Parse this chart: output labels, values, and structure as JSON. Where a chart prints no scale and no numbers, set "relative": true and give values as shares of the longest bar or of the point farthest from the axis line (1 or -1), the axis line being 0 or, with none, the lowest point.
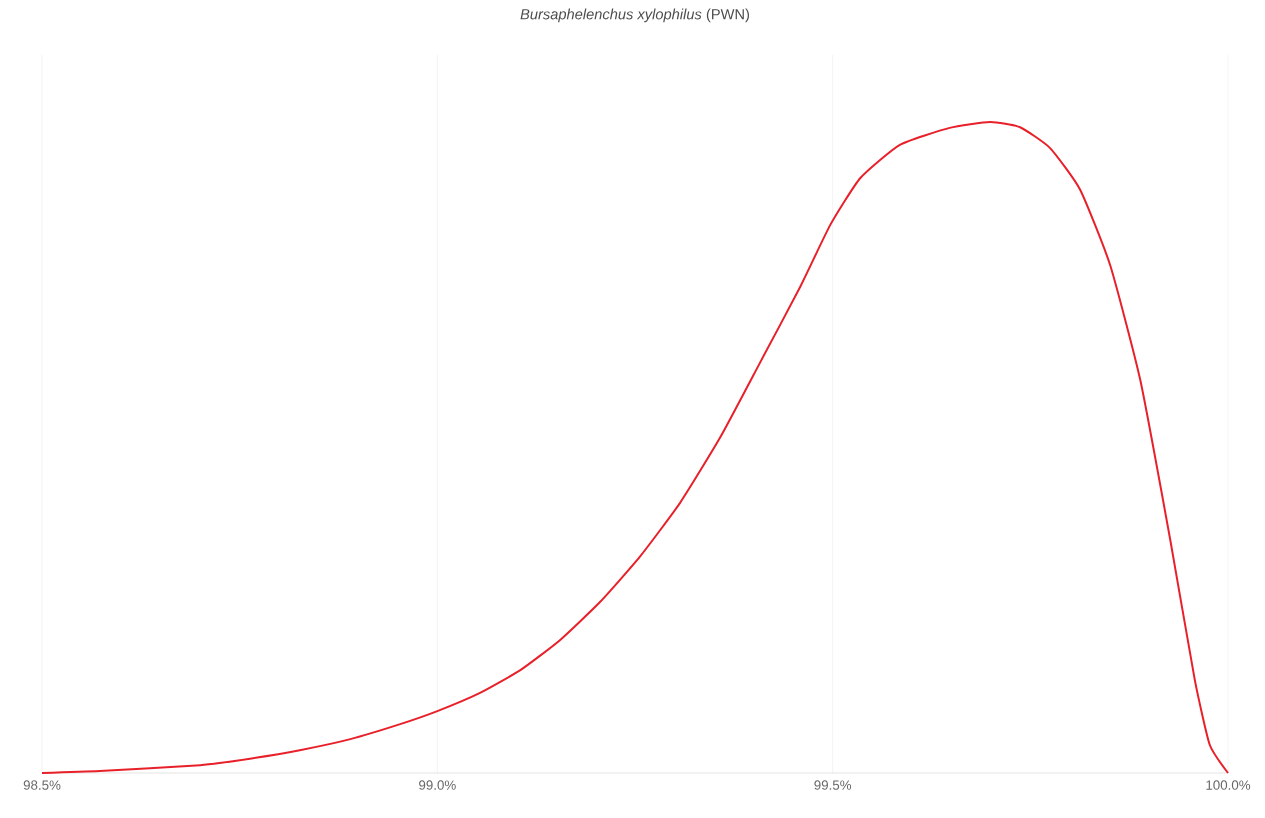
{
  "chart_data": {
    "type": "line",
    "title": "*Bursaphelenchus xylophilus* (PWN)",
    "relative": true,
    "grid": true,
    "marker": "none",
    "line_style": "solid",
    "xlim": [
      98.5,
      100.0
    ],
    "xticks": [
      {
        "value": 98.5,
        "label": "98.5%"
      },
      {
        "value": 99.0,
        "label": "99.0%"
      },
      {
        "value": 99.5,
        "label": "99.5%"
      },
      {
        "value": 100.0,
        "label": "100.0%"
      }
    ],
    "series": [
      {
        "color": "#e8202a",
        "x": [
          98.5,
          98.573,
          98.7,
          98.763,
          98.826,
          98.89,
          98.953,
          99.0,
          99.054,
          99.105,
          99.155,
          99.206,
          99.256,
          99.307,
          99.358,
          99.408,
          99.459,
          99.497,
          99.535,
          99.585,
          99.648,
          99.699,
          99.737,
          99.775,
          99.813,
          99.851,
          99.889,
          99.927,
          99.958,
          99.977,
          100.0
        ],
        "values": [
          0,
          0.003,
          0.012,
          0.022,
          0.035,
          0.052,
          0.075,
          0.095,
          0.123,
          0.158,
          0.204,
          0.263,
          0.332,
          0.415,
          0.516,
          0.63,
          0.747,
          0.842,
          0.914,
          0.965,
          0.991,
          1.0,
          0.992,
          0.96,
          0.896,
          0.78,
          0.604,
          0.358,
          0.143,
          0.043,
          0
        ]
      }
    ]
  }
}
